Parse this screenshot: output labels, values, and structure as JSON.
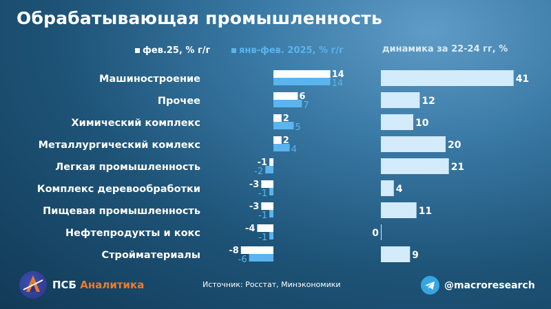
{
  "title": "Обрабатывающая промышленность",
  "legend": {
    "series1": "фев.25, % г/г",
    "series2": "янв-фев. 2025, % г/г"
  },
  "dynamics_title": "динамика за 22-24 гг, %",
  "colors": {
    "series1": "#ffffff",
    "series2": "#5ab4ee",
    "dynamics": "#d3ebfb",
    "label1": "#ffffff",
    "label2": "#5ab4ee",
    "category_text": "#ffffff"
  },
  "chart_data": [
    {
      "type": "bar",
      "orientation": "horizontal",
      "categories": [
        "Машиностроение",
        "Прочее",
        "Химический комплекс",
        "Металлургический комлекс",
        "Легкая промышленность",
        "Комплекс деревообработки",
        "Пищевая промышленность",
        "Нефтепродукты и кокс",
        "Стройматериалы"
      ],
      "series": [
        {
          "name": "фев.25, % г/г",
          "values": [
            14,
            6,
            2,
            2,
            -1,
            -3,
            -3,
            -4,
            -8
          ]
        },
        {
          "name": "янв-фев. 2025, % г/г",
          "values": [
            14,
            7,
            5,
            4,
            -2,
            -1,
            -1,
            -1,
            -6
          ]
        }
      ]
    },
    {
      "type": "bar",
      "orientation": "horizontal",
      "title": "динамика за 22-24 гг, %",
      "categories": [
        "Машиностроение",
        "Прочее",
        "Химический комплекс",
        "Металлургический комлекс",
        "Легкая промышленность",
        "Комплекс деревообработки",
        "Пищевая промышленность",
        "Нефтепродукты и кокс",
        "Стройматериалы"
      ],
      "values": [
        41,
        12,
        10,
        20,
        21,
        4,
        11,
        0,
        9
      ]
    }
  ],
  "footer": {
    "brand_main": "ПСБ",
    "brand_accent": "Аналитика",
    "source": "Источник: Росстат, Минэкономики",
    "telegram_handle": "@macroresearch",
    "logo_icon": "psb-logo-icon",
    "telegram_icon": "telegram-icon"
  }
}
